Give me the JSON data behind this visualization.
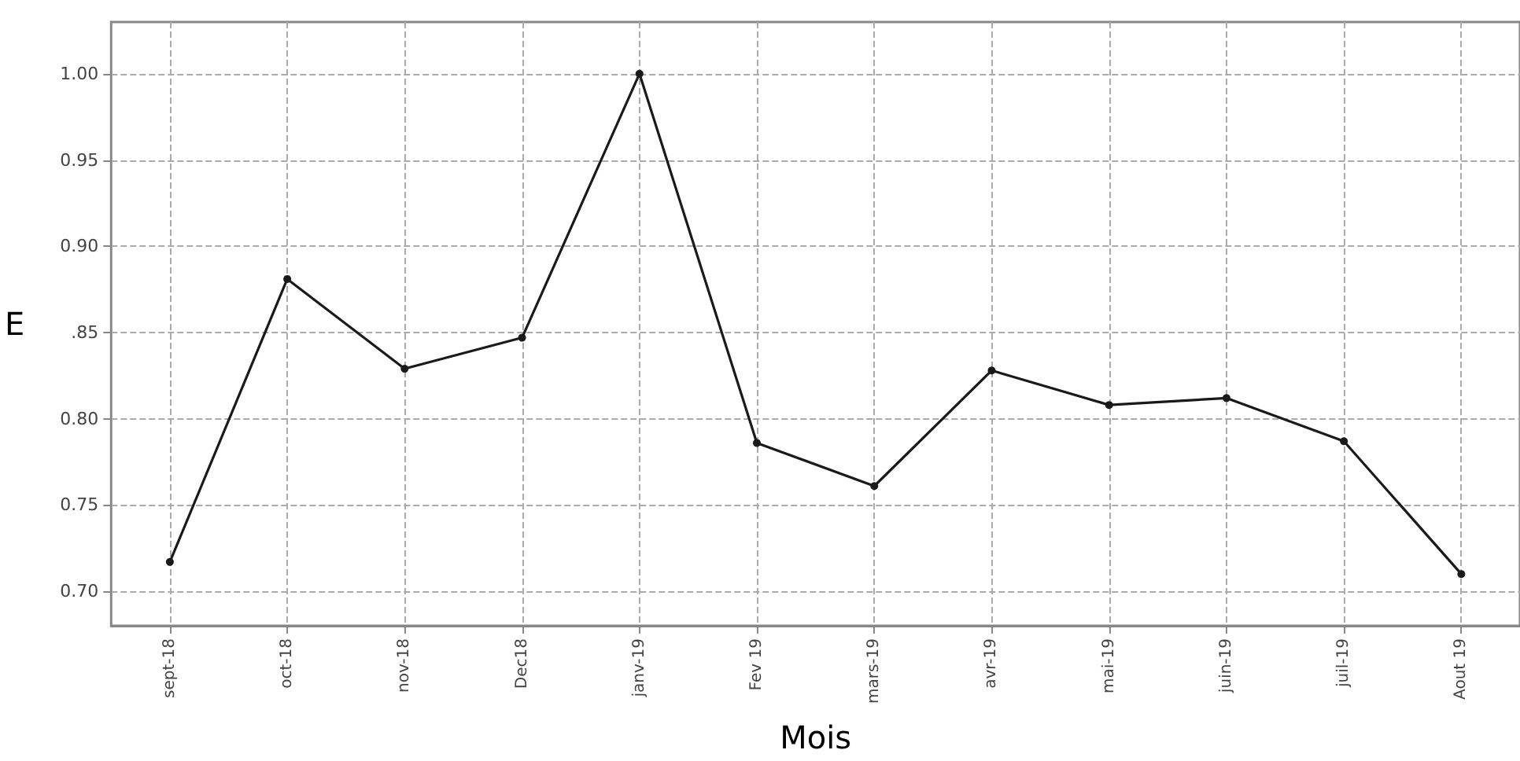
{
  "chart_data": {
    "type": "line",
    "xlabel": "Mois",
    "ylabel": "E",
    "categories": [
      "sept-18",
      "oct-18",
      "nov-18",
      "Dec18",
      "janv-19",
      "Fev 19",
      "mars-19",
      "avr-19",
      "mai-19",
      "juin-19",
      "juil-19",
      "Aout 19"
    ],
    "series": [
      {
        "color": "#1a1a1a",
        "values": [
          0.717,
          0.881,
          0.829,
          0.847,
          1.0,
          0.786,
          0.761,
          0.828,
          0.808,
          0.812,
          0.787,
          0.71
        ]
      }
    ],
    "ylim": [
      0.68,
      1.03
    ],
    "yticks": [
      {
        "value": 0.7,
        "label": "0.70"
      },
      {
        "value": 0.75,
        "label": "0.75"
      },
      {
        "value": 0.8,
        "label": "0.80"
      },
      {
        "value": 0.85,
        "label": ".85"
      },
      {
        "value": 0.9,
        "label": "0.90"
      },
      {
        "value": 0.95,
        "label": "0.95"
      },
      {
        "value": 1.0,
        "label": "1.00"
      }
    ],
    "grid": true,
    "marker": "circle",
    "line_style": "solid"
  }
}
